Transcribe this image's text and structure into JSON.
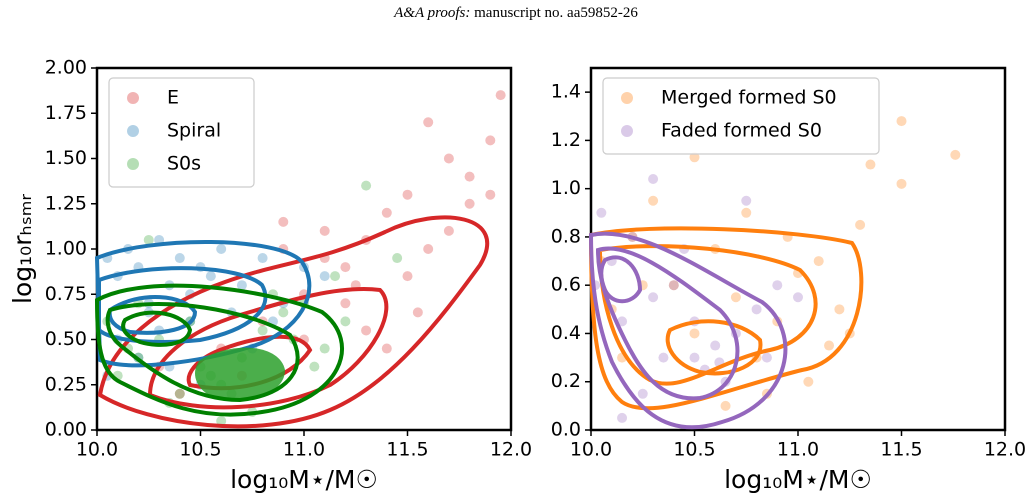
{
  "header": {
    "journal": "A&A proofs:",
    "manuscript": "manuscript no. aa59852-26"
  },
  "chart_data": [
    {
      "type": "scatter",
      "xlabel": "log₁₀M⋆/M☉",
      "ylabel": "log₁₀rₕₛₘᵣ",
      "xlim": [
        10,
        12
      ],
      "ylim": [
        0,
        2
      ],
      "xticks": [
        {
          "value": 10,
          "label": "10.0"
        },
        10.5,
        {
          "value": 11,
          "label": "11.0"
        },
        11.5,
        {
          "value": 12,
          "label": "12.0"
        }
      ],
      "yticks": [
        {
          "value": 0,
          "label": "0.00"
        },
        0.25,
        {
          "value": 0.5,
          "label": "0.50"
        },
        0.75,
        {
          "value": 1,
          "label": "1.00"
        },
        1.25,
        {
          "value": 1.5,
          "label": "1.50"
        },
        1.75,
        {
          "value": 2,
          "label": "2.00"
        }
      ],
      "legend": "upper left",
      "series": [
        {
          "name": "E",
          "color": "#d62728",
          "x": [
            10.6,
            10.8,
            10.9,
            11.0,
            11.1,
            11.2,
            11.3,
            11.4,
            11.5,
            11.6,
            11.7,
            11.8,
            11.9,
            11.95,
            11.5,
            11.3,
            11.1,
            10.9,
            10.7,
            11.2,
            11.4,
            11.6,
            11.8,
            11.7,
            11.9,
            10.4,
            10.3,
            11.0,
            11.25,
            11.55
          ],
          "values": [
            0.45,
            0.6,
            1.0,
            0.75,
            1.1,
            0.9,
            1.05,
            1.2,
            1.3,
            1.0,
            1.5,
            1.4,
            1.6,
            1.85,
            0.85,
            0.55,
            0.95,
            1.15,
            0.3,
            0.7,
            0.45,
            1.7,
            1.25,
            1.1,
            1.3,
            0.2,
            0.35,
            0.5,
            0.8,
            0.65
          ]
        },
        {
          "name": "Spiral",
          "color": "#1f77b4",
          "x": [
            10.05,
            10.1,
            10.15,
            10.2,
            10.25,
            10.3,
            10.35,
            10.4,
            10.45,
            10.5,
            10.55,
            10.6,
            10.7,
            10.8,
            10.9,
            11.0,
            10.1,
            10.2,
            10.3,
            10.45,
            10.65,
            10.75,
            10.05,
            10.35,
            10.85,
            11.1,
            10.5,
            10.25
          ],
          "values": [
            0.95,
            0.85,
            1.0,
            0.9,
            0.7,
            1.05,
            0.8,
            0.95,
            0.6,
            0.9,
            0.85,
            1.0,
            0.8,
            0.95,
            0.7,
            0.9,
            0.5,
            0.4,
            0.55,
            0.75,
            0.65,
            0.45,
            0.3,
            0.35,
            0.6,
            0.85,
            0.25,
            0.65
          ]
        },
        {
          "name": "S0s",
          "color": "#2ca02c",
          "x": [
            10.05,
            10.1,
            10.2,
            10.3,
            10.4,
            10.5,
            10.6,
            10.7,
            10.8,
            10.9,
            11.0,
            11.1,
            11.2,
            11.3,
            10.15,
            10.35,
            10.55,
            10.75,
            10.95,
            11.15,
            10.25,
            10.45,
            10.65,
            10.85,
            11.05,
            10.6,
            11.45,
            10.2
          ],
          "values": [
            0.6,
            0.3,
            0.7,
            0.5,
            0.2,
            0.35,
            0.25,
            0.4,
            0.55,
            0.65,
            0.7,
            0.45,
            0.6,
            1.35,
            0.45,
            0.15,
            0.3,
            0.1,
            0.5,
            0.85,
            1.05,
            0.6,
            0.2,
            0.75,
            0.35,
            0.05,
            0.95,
            0.4
          ]
        }
      ]
    },
    {
      "type": "scatter",
      "xlabel": "log₁₀M⋆/M☉",
      "xlim": [
        10,
        12
      ],
      "ylim": [
        0,
        1.5
      ],
      "xticks": [
        {
          "value": 10,
          "label": "10.0"
        },
        10.5,
        {
          "value": 11,
          "label": "11.0"
        },
        11.5,
        {
          "value": 12,
          "label": "12.0"
        }
      ],
      "yticks": [
        {
          "value": 0,
          "label": "0.0"
        },
        0.2,
        0.4,
        0.6,
        0.8,
        {
          "value": 1,
          "label": "1.0"
        },
        1.2,
        1.4
      ],
      "legend": "upper left",
      "series": [
        {
          "name": "Merged formed S0",
          "color": "#ff7f0e",
          "x": [
            10.05,
            10.1,
            10.2,
            10.3,
            10.4,
            10.5,
            10.6,
            10.7,
            10.8,
            10.9,
            11.0,
            11.1,
            11.2,
            11.3,
            11.5,
            11.76,
            11.35,
            11.5,
            11.05,
            10.5,
            10.15,
            10.85,
            10.95,
            11.15,
            10.65,
            10.25,
            11.25,
            10.75
          ],
          "values": [
            0.7,
            0.5,
            0.8,
            0.95,
            0.6,
            0.4,
            0.75,
            0.55,
            0.3,
            0.45,
            0.65,
            0.7,
            0.5,
            0.85,
            1.28,
            1.14,
            1.1,
            1.02,
            0.2,
            1.13,
            0.3,
            0.15,
            0.8,
            0.35,
            0.1,
            0.6,
            0.4,
            0.9
          ]
        },
        {
          "name": "Faded formed S0",
          "color": "#9467bd",
          "x": [
            10.02,
            10.1,
            10.15,
            10.2,
            10.3,
            10.35,
            10.4,
            10.5,
            10.55,
            10.6,
            10.7,
            10.75,
            10.8,
            10.9,
            10.05,
            10.25,
            10.45,
            10.65,
            10.85,
            10.15,
            10.3,
            10.5,
            10.62,
            11.0
          ],
          "values": [
            0.6,
            0.7,
            0.45,
            0.8,
            0.55,
            0.3,
            0.6,
            0.3,
            0.25,
            0.35,
            0.4,
            0.95,
            0.5,
            0.6,
            0.9,
            0.15,
            0.75,
            0.2,
            0.3,
            0.05,
            1.04,
            0.45,
            0.28,
            0.55
          ]
        }
      ]
    }
  ]
}
